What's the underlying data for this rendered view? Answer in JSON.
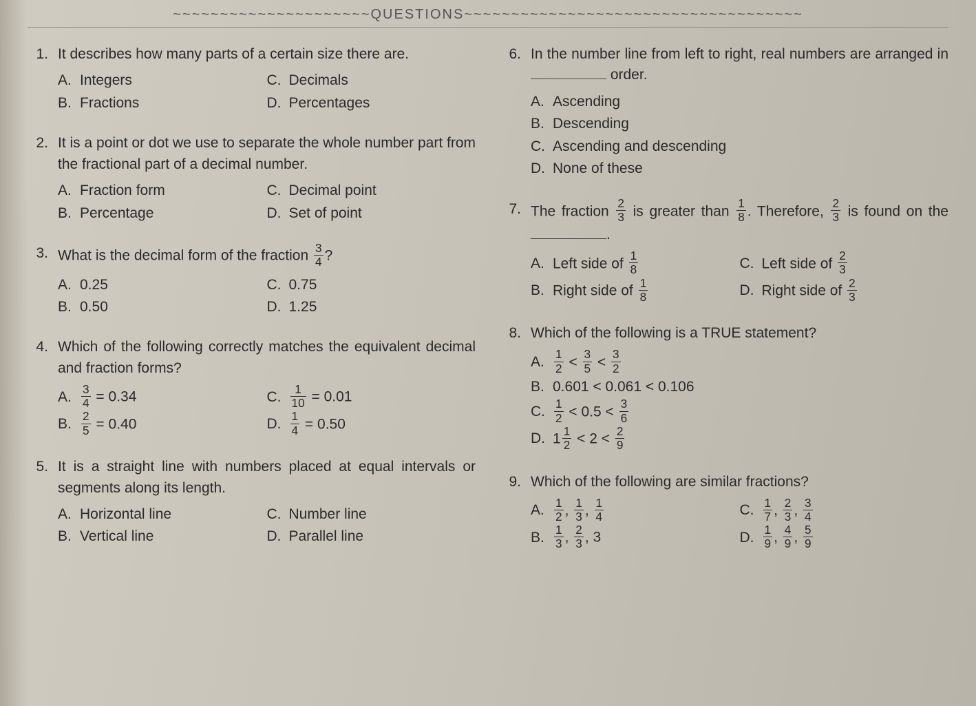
{
  "header": "~~~~~~~~~~~~~~~~~~~~~QUESTIONS~~~~~~~~~~~~~~~~~~~~~~~~~~~~~~~~~~~~",
  "questions": [
    {
      "num": "1.",
      "text": "It describes how many parts of a certain size there are.",
      "justify": false,
      "choices": [
        {
          "letter": "A.",
          "text": "Integers",
          "w": "half"
        },
        {
          "letter": "C.",
          "text": "Decimals",
          "w": "half"
        },
        {
          "letter": "B.",
          "text": "Fractions",
          "w": "half"
        },
        {
          "letter": "D.",
          "text": "Percentages",
          "w": "half"
        }
      ]
    },
    {
      "num": "2.",
      "text": "It is a point or dot we use to separate the whole number part from the fractional part of a decimal number.",
      "justify": true,
      "choices": [
        {
          "letter": "A.",
          "text": "Fraction form",
          "w": "half"
        },
        {
          "letter": "C.",
          "text": "Decimal point",
          "w": "half"
        },
        {
          "letter": "B.",
          "text": "Percentage",
          "w": "half"
        },
        {
          "letter": "D.",
          "text": "Set of point",
          "w": "half"
        }
      ]
    },
    {
      "num": "3.",
      "text_pre": "What is the decimal form of the fraction ",
      "frac": {
        "n": "3",
        "d": "4"
      },
      "text_post": "?",
      "choices": [
        {
          "letter": "A.",
          "text": "0.25",
          "w": "half"
        },
        {
          "letter": "C.",
          "text": "0.75",
          "w": "half"
        },
        {
          "letter": "B.",
          "text": "0.50",
          "w": "half"
        },
        {
          "letter": "D.",
          "text": "1.25",
          "w": "half"
        }
      ]
    },
    {
      "num": "4.",
      "text": "Which of the following correctly matches the equivalent decimal and fraction forms?",
      "justify": true,
      "choices_frac_eq": [
        {
          "letter": "A.",
          "n": "3",
          "d": "4",
          "eq": "= 0.34",
          "w": "half"
        },
        {
          "letter": "C.",
          "n": "1",
          "d": "10",
          "eq": "= 0.01",
          "w": "half"
        },
        {
          "letter": "B.",
          "n": "2",
          "d": "5",
          "eq": "= 0.40",
          "w": "half"
        },
        {
          "letter": "D.",
          "n": "1",
          "d": "4",
          "eq": "= 0.50",
          "w": "half"
        }
      ]
    },
    {
      "num": "5.",
      "text": "It is a straight line with numbers placed at equal intervals or segments along its length.",
      "justify": true,
      "choices": [
        {
          "letter": "A.",
          "text": "Horizontal line",
          "w": "half"
        },
        {
          "letter": "C.",
          "text": "Number line",
          "w": "half"
        },
        {
          "letter": "B.",
          "text": "Vertical line",
          "w": "half"
        },
        {
          "letter": "D.",
          "text": "Parallel line",
          "w": "half"
        }
      ]
    },
    {
      "num": "6.",
      "text_pre": "In the number line from left to right, real numbers are arranged in ",
      "blank": true,
      "text_post": " order.",
      "justify": true,
      "choices": [
        {
          "letter": "A.",
          "text": "Ascending",
          "w": "full"
        },
        {
          "letter": "B.",
          "text": "Descending",
          "w": "full"
        },
        {
          "letter": "C.",
          "text": "Ascending and descending",
          "w": "full"
        },
        {
          "letter": "D.",
          "text": "None of these",
          "w": "full"
        }
      ]
    },
    {
      "num": "7.",
      "parts": [
        {
          "t": "The fraction "
        },
        {
          "frac": {
            "n": "2",
            "d": "3"
          }
        },
        {
          "t": " is greater than "
        },
        {
          "frac": {
            "n": "1",
            "d": "8"
          }
        },
        {
          "t": ". Therefore, "
        },
        {
          "frac": {
            "n": "2",
            "d": "3"
          }
        },
        {
          "t": " is found on the "
        },
        {
          "blank": true
        },
        {
          "t": "."
        }
      ],
      "justify": true,
      "choices_mixed": [
        {
          "letter": "A.",
          "pre": "Left side of ",
          "frac": {
            "n": "1",
            "d": "8"
          },
          "w": "half"
        },
        {
          "letter": "C.",
          "pre": "Left side of ",
          "frac": {
            "n": "2",
            "d": "3"
          },
          "w": "half"
        },
        {
          "letter": "B.",
          "pre": "Right side of ",
          "frac": {
            "n": "1",
            "d": "8"
          },
          "w": "half"
        },
        {
          "letter": "D.",
          "pre": "Right side of ",
          "frac": {
            "n": "2",
            "d": "3"
          },
          "w": "half"
        }
      ]
    },
    {
      "num": "8.",
      "text": "Which of the following is a TRUE statement?",
      "choices_ineq": [
        {
          "letter": "A.",
          "seq": [
            {
              "frac": {
                "n": "1",
                "d": "2"
              }
            },
            " < ",
            {
              "frac": {
                "n": "3",
                "d": "5"
              }
            },
            " < ",
            {
              "frac": {
                "n": "3",
                "d": "2"
              }
            }
          ],
          "w": "full"
        },
        {
          "letter": "B.",
          "seq": [
            "0.601 < 0.061 < 0.106"
          ],
          "w": "full"
        },
        {
          "letter": "C.",
          "seq": [
            {
              "frac": {
                "n": "1",
                "d": "2"
              }
            },
            " < 0.5 < ",
            {
              "frac": {
                "n": "3",
                "d": "6"
              }
            }
          ],
          "w": "full"
        },
        {
          "letter": "D.",
          "seq": [
            "1",
            {
              "frac": {
                "n": "1",
                "d": "2"
              }
            },
            " < 2 < ",
            {
              "frac": {
                "n": "2",
                "d": "9"
              }
            }
          ],
          "w": "full"
        }
      ]
    },
    {
      "num": "9.",
      "text": "Which of the following are similar fractions?",
      "choices_fraclist": [
        {
          "letter": "A.",
          "items": [
            {
              "n": "1",
              "d": "2"
            },
            {
              "n": "1",
              "d": "3"
            },
            {
              "n": "1",
              "d": "4"
            }
          ],
          "w": "half"
        },
        {
          "letter": "C.",
          "items": [
            {
              "n": "1",
              "d": "7"
            },
            {
              "n": "2",
              "d": "3"
            },
            {
              "n": "3",
              "d": "4"
            }
          ],
          "w": "half"
        },
        {
          "letter": "B.",
          "items": [
            {
              "n": "1",
              "d": "3"
            },
            {
              "n": "2",
              "d": "3"
            }
          ],
          "tail": ", 3",
          "w": "half"
        },
        {
          "letter": "D.",
          "items": [
            {
              "n": "1",
              "d": "9"
            },
            {
              "n": "4",
              "d": "9"
            },
            {
              "n": "5",
              "d": "9"
            }
          ],
          "w": "half"
        }
      ]
    }
  ]
}
